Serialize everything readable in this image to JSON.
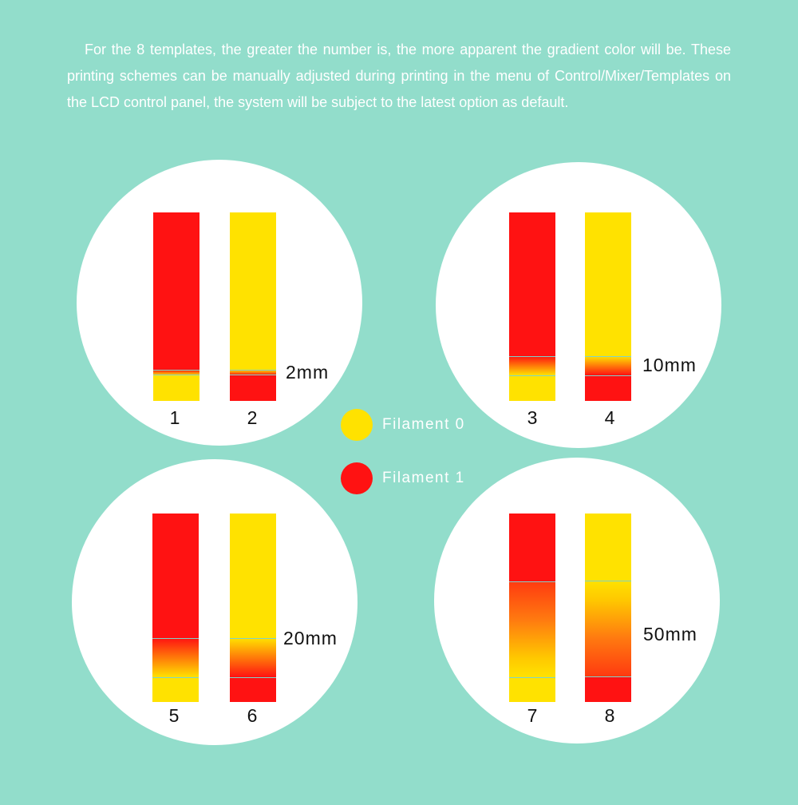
{
  "intro_text": "For the 8 templates, the greater the number is, the more apparent the gradient color will be. These printing schemes can be manually adjusted during printing in the menu of Control/Mixer/Templates  on the LCD control panel, the system will be subject to the latest option as default.",
  "colors": {
    "background": "#92DDCB",
    "filament_0": "#FFE200",
    "filament_1": "#FF1212",
    "circle": "#FFFFFF"
  },
  "legend": [
    {
      "label": "Filament 0",
      "color": "#FFE200"
    },
    {
      "label": "Filament 1",
      "color": "#FF1212"
    }
  ],
  "groups": [
    {
      "distance": "2mm",
      "templates": [
        {
          "number": "1"
        },
        {
          "number": "2"
        }
      ]
    },
    {
      "distance": "10mm",
      "templates": [
        {
          "number": "3"
        },
        {
          "number": "4"
        }
      ]
    },
    {
      "distance": "20mm",
      "templates": [
        {
          "number": "5"
        },
        {
          "number": "6"
        }
      ]
    },
    {
      "distance": "50mm",
      "templates": [
        {
          "number": "7"
        },
        {
          "number": "8"
        }
      ]
    }
  ]
}
